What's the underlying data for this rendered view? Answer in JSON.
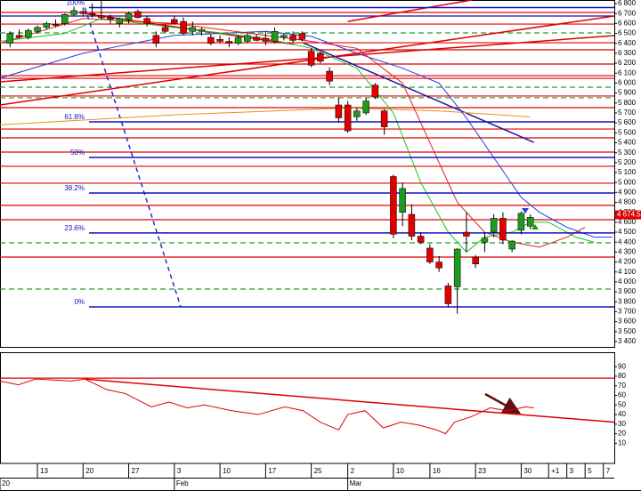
{
  "chart_data": [
    {
      "type": "candlestick",
      "xlim": [
        -1.1,
        66.2
      ],
      "ylim": [
        3346,
        6836
      ],
      "up_color": "#1f9a1f",
      "down_color": "#e00000",
      "x": [
        0,
        1,
        2,
        3,
        4,
        5,
        6,
        7,
        8,
        9,
        10,
        11,
        12,
        13,
        14,
        15,
        16,
        17,
        18,
        19,
        20,
        21,
        22,
        23,
        24,
        25,
        26,
        27,
        28,
        29,
        30,
        31,
        32,
        33,
        34,
        35,
        36,
        37,
        38,
        39,
        40,
        41,
        42,
        43,
        44,
        45,
        46,
        47,
        48,
        49,
        50,
        51,
        52,
        53,
        54,
        55,
        56,
        57
      ],
      "open": [
        6400,
        6480,
        6460,
        6520,
        6560,
        6590,
        6600,
        6690,
        6720,
        6700,
        6680,
        6660,
        6600,
        6640,
        6720,
        6650,
        6480,
        6560,
        6640,
        6620,
        6520,
        6520,
        6460,
        6440,
        6420,
        6400,
        6420,
        6460,
        6450,
        6420,
        6460,
        6480,
        6500,
        6320,
        6300,
        6120,
        5780,
        5780,
        5660,
        5700,
        5980,
        5720,
        5060,
        4700,
        4680,
        4460,
        4340,
        4200,
        3960,
        3950,
        4500,
        4250,
        4400,
        4500,
        4640,
        4330,
        4520,
        4560
      ],
      "high": [
        6520,
        6540,
        6550,
        6580,
        6620,
        6640,
        6700,
        6770,
        6760,
        6800,
        6830,
        6690,
        6660,
        6720,
        6740,
        6680,
        6520,
        6600,
        6680,
        6660,
        6620,
        6560,
        6500,
        6480,
        6460,
        6480,
        6500,
        6490,
        6520,
        6560,
        6500,
        6520,
        6520,
        6350,
        6320,
        6160,
        5860,
        5820,
        5750,
        5850,
        6000,
        5740,
        5080,
        5000,
        4780,
        4500,
        4380,
        4260,
        3990,
        4340,
        4700,
        4270,
        4500,
        4680,
        4700,
        4420,
        4710,
        4680
      ],
      "low": [
        6360,
        6450,
        6440,
        6500,
        6540,
        6560,
        6580,
        6670,
        6680,
        6660,
        6640,
        6600,
        6560,
        6600,
        6650,
        6570,
        6360,
        6500,
        6590,
        6480,
        6480,
        6480,
        6380,
        6400,
        6360,
        6380,
        6400,
        6420,
        6380,
        6400,
        6430,
        6410,
        6420,
        6160,
        6200,
        5980,
        5600,
        5500,
        5620,
        5680,
        5840,
        5480,
        4440,
        4560,
        4420,
        4380,
        4180,
        4100,
        3750,
        3680,
        4300,
        4140,
        4300,
        4450,
        4380,
        4300,
        4480,
        4530
      ],
      "close": [
        6500,
        6460,
        6530,
        6560,
        6600,
        6580,
        6690,
        6730,
        6700,
        6690,
        6660,
        6640,
        6650,
        6700,
        6660,
        6600,
        6400,
        6520,
        6600,
        6500,
        6560,
        6540,
        6400,
        6420,
        6400,
        6460,
        6480,
        6430,
        6420,
        6520,
        6480,
        6430,
        6440,
        6180,
        6220,
        6020,
        5650,
        5520,
        5720,
        5820,
        5860,
        5560,
        4480,
        4940,
        4460,
        4400,
        4200,
        4140,
        3780,
        4330,
        4460,
        4180,
        4440,
        4640,
        4420,
        4410,
        4690,
        4650
      ],
      "yticks": [
        {
          "value": 6800,
          "label": "6 800"
        },
        {
          "value": 6700,
          "label": "6 700"
        },
        {
          "value": 6600,
          "label": "6 600"
        },
        {
          "value": 6500,
          "label": "6 500"
        },
        {
          "value": 6400,
          "label": "6 400"
        },
        {
          "value": 6300,
          "label": "6 300"
        },
        {
          "value": 6200,
          "label": "6 200"
        },
        {
          "value": 6100,
          "label": "6 100"
        },
        {
          "value": 6000,
          "label": "6 000"
        },
        {
          "value": 5900,
          "label": "5 900"
        },
        {
          "value": 5800,
          "label": "5 800"
        },
        {
          "value": 5700,
          "label": "5 700"
        },
        {
          "value": 5600,
          "label": "5 600"
        },
        {
          "value": 5500,
          "label": "5 500"
        },
        {
          "value": 5400,
          "label": "5 400"
        },
        {
          "value": 5300,
          "label": "5 300"
        },
        {
          "value": 5200,
          "label": "5 200"
        },
        {
          "value": 5100,
          "label": "5 100"
        },
        {
          "value": 5000,
          "label": "5 000"
        },
        {
          "value": 4900,
          "label": "4 900"
        },
        {
          "value": 4800,
          "label": "4 800"
        },
        {
          "value": 4700,
          "label": "4 700"
        },
        {
          "value": 4600,
          "label": "4 600"
        },
        {
          "value": 4500,
          "label": "4 500"
        },
        {
          "value": 4400,
          "label": "4 400"
        },
        {
          "value": 4300,
          "label": "4 300"
        },
        {
          "value": 4200,
          "label": "4 200"
        },
        {
          "value": 4100,
          "label": "4 100"
        },
        {
          "value": 4000,
          "label": "4 000"
        },
        {
          "value": 3900,
          "label": "3 900"
        },
        {
          "value": 3800,
          "label": "3 800"
        },
        {
          "value": 3700,
          "label": "3 700"
        },
        {
          "value": 3600,
          "label": "3 600"
        },
        {
          "value": 3500,
          "label": "3 500"
        },
        {
          "value": 3400,
          "label": "3 400"
        }
      ],
      "xticks": [
        {
          "value": 3,
          "label": "13"
        },
        {
          "value": 8,
          "label": "20"
        },
        {
          "value": 13,
          "label": "27"
        },
        {
          "value": 18,
          "label": "3"
        },
        {
          "value": 23,
          "label": "10"
        },
        {
          "value": 28,
          "label": "17"
        },
        {
          "value": 33,
          "label": "25"
        },
        {
          "value": 37,
          "label": "2"
        },
        {
          "value": 42,
          "label": "10"
        },
        {
          "value": 46,
          "label": "16"
        },
        {
          "value": 51,
          "label": "23"
        },
        {
          "value": 56,
          "label": "30"
        },
        {
          "value": 59,
          "label": "+1"
        },
        {
          "value": 61,
          "label": "3"
        },
        {
          "value": 63,
          "label": "5"
        },
        {
          "value": 65,
          "label": "7"
        }
      ],
      "x_period_labels": [
        {
          "value": -1.1,
          "label": "20"
        },
        {
          "value": 18,
          "label": "Feb"
        },
        {
          "value": 37,
          "label": "Mar"
        }
      ],
      "hlines": [
        {
          "value": 6711,
          "color": "#e00000",
          "dashed": false
        },
        {
          "value": 6675,
          "color": "#1010a0",
          "dashed": false
        },
        {
          "value": 6594,
          "color": "#e00000",
          "dashed": false
        },
        {
          "value": 6505,
          "color": "#2a9a2a",
          "dashed": true
        },
        {
          "value": 6406,
          "color": "#e00000",
          "dashed": false
        },
        {
          "value": 6335,
          "color": "#e00000",
          "dashed": false
        },
        {
          "value": 6192,
          "color": "#e00000",
          "dashed": false
        },
        {
          "value": 6075,
          "color": "#e00000",
          "dashed": false
        },
        {
          "value": 6048,
          "color": "#e00000",
          "dashed": false
        },
        {
          "value": 5959,
          "color": "#2a9a2a",
          "dashed": true
        },
        {
          "value": 5870,
          "color": "#e00000",
          "dashed": false
        },
        {
          "value": 5852,
          "color": "#2a9a2a",
          "dashed": true
        },
        {
          "value": 5753,
          "color": "#e00000",
          "dashed": false
        },
        {
          "value": 5538,
          "color": "#e00000",
          "dashed": false
        },
        {
          "value": 5449,
          "color": "#e00000",
          "dashed": false
        },
        {
          "value": 5306,
          "color": "#e00000",
          "dashed": false
        },
        {
          "value": 5163,
          "color": "#e00000",
          "dashed": false
        },
        {
          "value": 4993,
          "color": "#e00000",
          "dashed": false
        },
        {
          "value": 4770,
          "color": "#e00000",
          "dashed": false
        },
        {
          "value": 4626,
          "color": "#e00000",
          "dashed": false
        },
        {
          "value": 4393,
          "color": "#2a9a2a",
          "dashed": true
        },
        {
          "value": 4250,
          "color": "#e00000",
          "dashed": false
        },
        {
          "value": 3928,
          "color": "#2a9a2a",
          "dashed": true
        }
      ],
      "fib_color": "#1010c0",
      "fib_levels": [
        {
          "value": 6760,
          "label": "100%"
        },
        {
          "value": 5610,
          "label": "61.8%"
        },
        {
          "value": 5252,
          "label": "50%"
        },
        {
          "value": 4894,
          "label": "38.2%"
        },
        {
          "value": 4492,
          "label": "23.6%"
        },
        {
          "value": 3749,
          "label": "0%"
        }
      ],
      "trendlines": [
        {
          "x": [
            -1.1,
            66.2
          ],
          "y": [
            5780,
            6675
          ],
          "color": "#e00000",
          "dashed": false
        },
        {
          "x": [
            -1.1,
            66.2
          ],
          "y": [
            6013,
            6478
          ],
          "color": "#e00000",
          "dashed": false
        },
        {
          "x": [
            37,
            50.6
          ],
          "y": [
            6620,
            6836
          ],
          "color": "#e00000",
          "dashed": false
        },
        {
          "x": [
            8.2,
            31.1
          ],
          "y": [
            6700,
            6390
          ],
          "color": "#e00000",
          "dashed": false
        },
        {
          "x": [
            8.2,
            18.7
          ],
          "y": [
            6760,
            3749
          ],
          "color": "#2030d0",
          "dashed": true
        },
        {
          "x": [
            32.1,
            57.4
          ],
          "y": [
            6406,
            5404
          ],
          "color": "#1a1aa0",
          "dashed": false
        }
      ],
      "moving_averages": [
        {
          "color": "#e8901a",
          "x": [
            -1.1,
            18,
            37,
            47,
            57
          ],
          "values": [
            5580,
            5680,
            5750,
            5720,
            5660
          ]
        },
        {
          "color": "#2040e0",
          "x": [
            -1.1,
            8,
            18,
            28,
            33,
            38,
            43,
            47,
            50,
            53,
            56,
            58,
            61,
            64,
            66
          ],
          "values": [
            6050,
            6300,
            6480,
            6520,
            6470,
            6300,
            6150,
            6000,
            5650,
            5250,
            4850,
            4700,
            4550,
            4450,
            4450
          ]
        },
        {
          "color": "#e02020",
          "x": [
            -1.1,
            8,
            18,
            28,
            33,
            38,
            43,
            46,
            49,
            52,
            55,
            58,
            61,
            63
          ],
          "values": [
            6400,
            6650,
            6600,
            6480,
            6420,
            6350,
            6000,
            5400,
            4800,
            4500,
            4400,
            4350,
            4450,
            4550
          ]
        },
        {
          "color": "#20c020",
          "x": [
            -1.1,
            6,
            10,
            18,
            28,
            33,
            38,
            42,
            45,
            48,
            50,
            52,
            55,
            57,
            59,
            62,
            64
          ],
          "values": [
            6420,
            6500,
            6650,
            6560,
            6450,
            6350,
            6150,
            5700,
            5000,
            4500,
            4300,
            4450,
            4500,
            4600,
            4600,
            4450,
            4400
          ]
        }
      ],
      "last_price": {
        "value": 4674.5,
        "label": "4 674.5"
      }
    },
    {
      "type": "line",
      "xlim": [
        -1.1,
        66.2
      ],
      "ylim": [
        -11,
        105
      ],
      "color": "#e00000",
      "yticks": [
        90,
        80,
        70,
        60,
        50,
        40,
        30,
        20,
        10
      ],
      "x": [
        -1.1,
        0.9,
        2.8,
        6.7,
        8.2,
        10.6,
        12.6,
        15.5,
        17.4,
        19.4,
        21.3,
        24.3,
        27.2,
        30.1,
        32.1,
        34,
        36,
        37,
        38.9,
        40.9,
        42.8,
        44.8,
        46.7,
        47.7,
        48.7,
        50.6,
        52.6,
        54.5,
        56.5,
        57.4
      ],
      "values": [
        75,
        71,
        77,
        75,
        77,
        66,
        62,
        48,
        53,
        47,
        50,
        44,
        40,
        48,
        44,
        32,
        24,
        40,
        44,
        26,
        32,
        29,
        24,
        20,
        32,
        38,
        47,
        44,
        48,
        47
      ],
      "hlines": [
        {
          "value": 78,
          "color": "#e00000",
          "dashed": false
        }
      ],
      "trendlines": [
        {
          "x": [
            8.2,
            66.2
          ],
          "y": [
            77,
            32
          ],
          "color": "#e00000",
          "dashed": false
        }
      ]
    }
  ]
}
